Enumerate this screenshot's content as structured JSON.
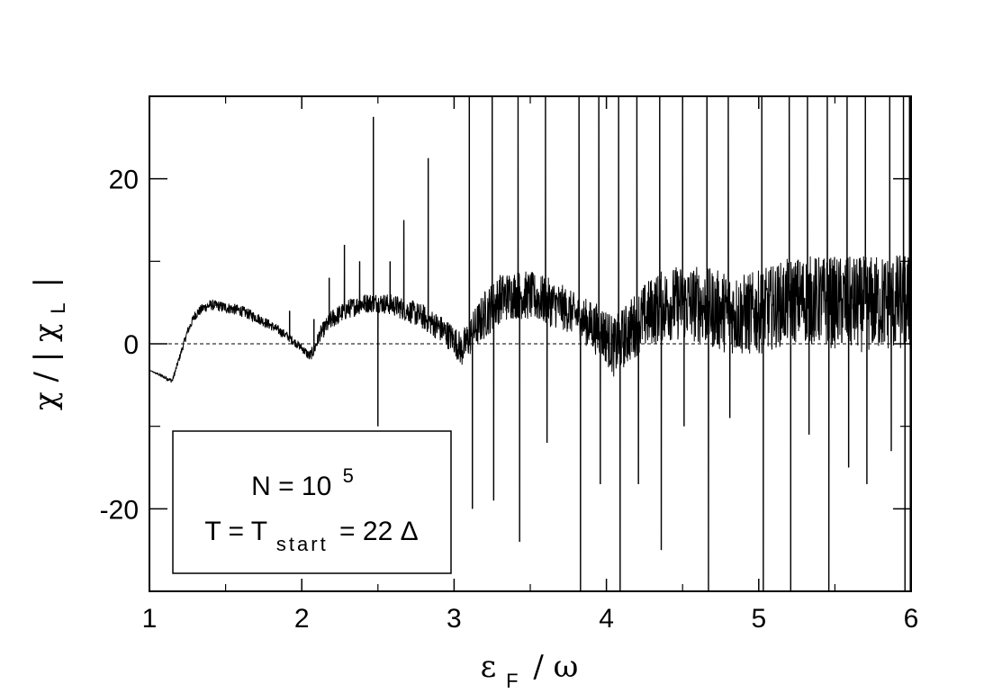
{
  "chart_data": {
    "type": "line",
    "title": "",
    "xlabel": {
      "epsilon": "ε",
      "sub": "F",
      "rest": "/ ω"
    },
    "ylabel": {
      "chi": "χ / | χ",
      "sub": "L",
      "end": "|"
    },
    "xlim": [
      1,
      6
    ],
    "ylim": [
      -30,
      30
    ],
    "x_ticks": [
      1,
      2,
      3,
      4,
      5,
      6
    ],
    "x_tick_labels": [
      "1",
      "2",
      "3",
      "4",
      "5",
      "6"
    ],
    "x_minor_ticks": [
      1.5,
      2.5,
      3.5,
      4.5,
      5.5
    ],
    "y_ticks": [
      -20,
      0,
      20
    ],
    "y_tick_labels": [
      "-20",
      "0",
      "20"
    ],
    "y_minor_ticks": [
      -10,
      10
    ],
    "reference_line": {
      "y": 0,
      "style": "dashed"
    },
    "legend": {
      "placement": "bottom-left",
      "line1": {
        "text": "N = 10",
        "sup": "5"
      },
      "line2": {
        "lead": "T = T",
        "sub": "start",
        "tail": "= 22 Δ"
      }
    },
    "series": [
      {
        "x": [
          1.0,
          1.15,
          1.2,
          1.25,
          1.3,
          1.35,
          1.4,
          1.45,
          1.5,
          1.6,
          1.7,
          1.8,
          1.9,
          2.0,
          2.05,
          2.08,
          2.12,
          2.2,
          2.3,
          2.4,
          2.5,
          2.6,
          2.7,
          2.8,
          2.9,
          3.0,
          3.05,
          3.1,
          3.2,
          3.3,
          3.4,
          3.5,
          3.6,
          3.7,
          3.8,
          3.9,
          4.0,
          4.05,
          4.1,
          4.2,
          4.3,
          4.4,
          4.5,
          4.6,
          4.7,
          4.8,
          4.9,
          5.0,
          5.1,
          5.2,
          5.3,
          5.4,
          5.5,
          5.6,
          5.7,
          5.8,
          5.9,
          6.0
        ],
        "y": [
          -3.2,
          -4.5,
          -1.5,
          1.5,
          3.5,
          4.3,
          4.7,
          4.6,
          4.4,
          4.0,
          3.2,
          2.2,
          1.0,
          -0.5,
          -1.5,
          -0.8,
          1.2,
          3.0,
          4.2,
          4.9,
          5.0,
          4.7,
          4.0,
          3.2,
          2.0,
          0.5,
          -0.8,
          0.8,
          3.5,
          5.5,
          6.0,
          5.8,
          5.2,
          4.5,
          3.5,
          2.2,
          1.0,
          -0.5,
          0.5,
          2.5,
          4.0,
          4.8,
          5.0,
          4.8,
          4.2,
          3.8,
          3.5,
          3.8,
          4.5,
          5.2,
          5.4,
          5.2,
          5.0,
          4.8,
          4.8,
          5.0,
          5.0,
          5.0
        ],
        "noise_amplitude_by_x": [
          [
            1.0,
            0.0
          ],
          [
            1.3,
            0.6
          ],
          [
            1.6,
            0.7
          ],
          [
            2.0,
            0.5
          ],
          [
            2.2,
            1.2
          ],
          [
            2.5,
            1.2
          ],
          [
            3.0,
            1.8
          ],
          [
            3.2,
            3.0
          ],
          [
            3.6,
            3.0
          ],
          [
            3.8,
            2.6
          ],
          [
            4.0,
            3.5
          ],
          [
            4.4,
            4.5
          ],
          [
            4.8,
            5.0
          ],
          [
            5.2,
            5.2
          ],
          [
            5.6,
            5.8
          ],
          [
            6.0,
            6.0
          ]
        ],
        "spikes": [
          [
            1.92,
            4
          ],
          [
            2.08,
            3
          ],
          [
            2.18,
            8
          ],
          [
            2.28,
            12
          ],
          [
            2.38,
            10
          ],
          [
            2.47,
            27.5
          ],
          [
            2.5,
            -10
          ],
          [
            2.58,
            10
          ],
          [
            2.67,
            15
          ],
          [
            2.83,
            22.5
          ],
          [
            3.1,
            30
          ],
          [
            3.12,
            -20
          ],
          [
            3.25,
            30
          ],
          [
            3.26,
            -19
          ],
          [
            3.42,
            30
          ],
          [
            3.43,
            -24
          ],
          [
            3.6,
            30
          ],
          [
            3.61,
            -12
          ],
          [
            3.82,
            30
          ],
          [
            3.83,
            -30
          ],
          [
            3.95,
            30
          ],
          [
            3.96,
            -17
          ],
          [
            4.08,
            30
          ],
          [
            4.09,
            -30
          ],
          [
            4.2,
            30
          ],
          [
            4.21,
            -17
          ],
          [
            4.35,
            30
          ],
          [
            4.36,
            -25
          ],
          [
            4.5,
            30
          ],
          [
            4.51,
            -10
          ],
          [
            4.66,
            30
          ],
          [
            4.67,
            -30
          ],
          [
            4.8,
            30
          ],
          [
            4.81,
            -9
          ],
          [
            5.02,
            30
          ],
          [
            5.03,
            -30
          ],
          [
            5.2,
            30
          ],
          [
            5.21,
            -30
          ],
          [
            5.32,
            30
          ],
          [
            5.33,
            -11
          ],
          [
            5.45,
            30
          ],
          [
            5.46,
            -30
          ],
          [
            5.58,
            30
          ],
          [
            5.59,
            -15
          ],
          [
            5.7,
            30
          ],
          [
            5.71,
            -17
          ],
          [
            5.86,
            30
          ],
          [
            5.87,
            -13
          ],
          [
            5.95,
            30
          ],
          [
            5.96,
            -30
          ],
          [
            5.99,
            30
          ],
          [
            5.995,
            -30
          ]
        ]
      }
    ]
  }
}
